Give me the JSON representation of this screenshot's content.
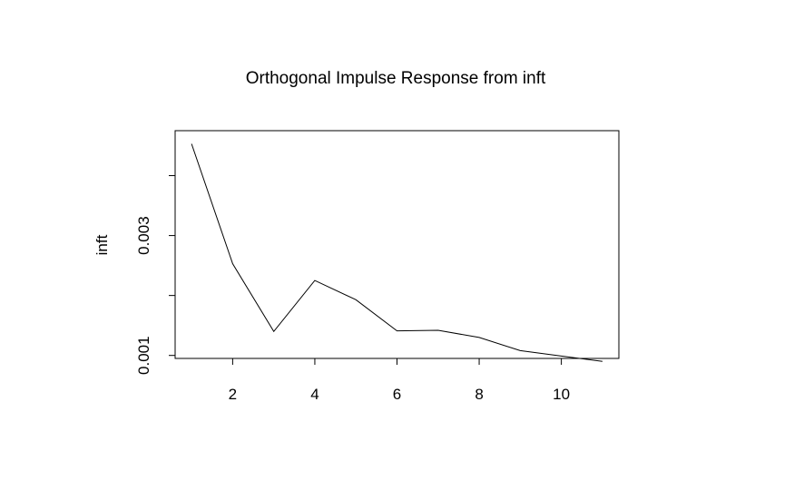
{
  "chart_data": {
    "type": "line",
    "title": "Orthogonal Impulse Response from inft",
    "xlabel": "",
    "ylabel": "inft",
    "x": [
      1,
      2,
      3,
      4,
      5,
      6,
      7,
      8,
      9,
      10,
      11
    ],
    "series": [
      {
        "values": [
          0.00453,
          0.00253,
          0.0014,
          0.00225,
          0.00193,
          0.00141,
          0.00142,
          0.0013,
          0.00108,
          0.00099,
          0.0009
        ]
      }
    ],
    "xlim": [
      0.6,
      11.4
    ],
    "ylim": [
      0.00095,
      0.00475
    ],
    "xticks": [
      2,
      4,
      6,
      8,
      10
    ],
    "xtick_labels": [
      "2",
      "4",
      "6",
      "8",
      "10"
    ],
    "yticks": [
      0.001,
      0.002,
      0.003,
      0.004
    ],
    "ytick_labels": [
      "0.001",
      "",
      "0.003",
      ""
    ],
    "grid": false,
    "line_color": "#000000"
  }
}
